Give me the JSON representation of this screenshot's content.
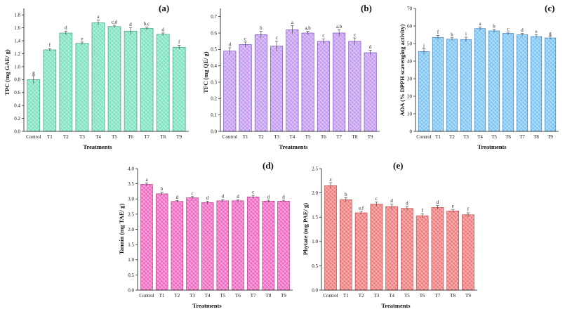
{
  "chart_data": [
    {
      "type": "bar",
      "panel_label": "(a)",
      "title": "",
      "xlabel": "Treatments",
      "ylabel": "TPC (mg GAE/ g)",
      "categories": [
        "Control",
        "T1",
        "T2",
        "T3",
        "T4",
        "T5",
        "T6",
        "T7",
        "T8",
        "T9"
      ],
      "values": [
        0.8,
        1.26,
        1.52,
        1.36,
        1.68,
        1.62,
        1.55,
        1.59,
        1.5,
        1.3
      ],
      "errors": [
        0.06,
        0.02,
        0.03,
        0.02,
        0.04,
        0.02,
        0.05,
        0.02,
        0.02,
        0.03
      ],
      "significance": [
        "g",
        "f",
        "d",
        "e",
        "a",
        "c,d",
        "d",
        "b,c",
        "d",
        "f"
      ],
      "ylim": [
        0,
        1.9
      ],
      "yticks": [
        0.0,
        0.2,
        0.4,
        0.6,
        0.8,
        1.0,
        1.2,
        1.4,
        1.6,
        1.8
      ],
      "ytick_labels": [
        "0.0",
        "0.2",
        "0.4",
        "0.6",
        "0.8",
        "1.0",
        "1.2",
        "1.4",
        "1.6",
        "1.8"
      ],
      "color": "#7fe3c3",
      "edge": "#2f8f6f"
    },
    {
      "type": "bar",
      "panel_label": "(b)",
      "title": "",
      "xlabel": "Treatments",
      "ylabel": "TFC (mg QE/ g)",
      "categories": [
        "Control",
        "T1",
        "T2",
        "T3",
        "T4",
        "T5",
        "T6",
        "T7",
        "T8",
        "T9"
      ],
      "values": [
        0.49,
        0.53,
        0.59,
        0.52,
        0.62,
        0.6,
        0.55,
        0.6,
        0.55,
        0.48
      ],
      "errors": [
        0.02,
        0.015,
        0.02,
        0.03,
        0.025,
        0.01,
        0.015,
        0.02,
        0.02,
        0.015
      ],
      "significance": [
        "d",
        "c",
        "b",
        "c",
        "a",
        "a,b",
        "c",
        "a,b",
        "c",
        "d"
      ],
      "ylim": [
        0,
        0.75
      ],
      "yticks": [
        0.0,
        0.1,
        0.2,
        0.3,
        0.4,
        0.5,
        0.6,
        0.7
      ],
      "ytick_labels": [
        "0.0",
        "0.1",
        "0.2",
        "0.3",
        "0.4",
        "0.5",
        "0.6",
        "0.7"
      ],
      "color": "#c49df0",
      "edge": "#6e3fb5"
    },
    {
      "type": "bar",
      "panel_label": "(c)",
      "title": "",
      "xlabel": "Treatments",
      "ylabel": "AOA (% DPPH scavenging activity)",
      "categories": [
        "Control",
        "T1",
        "T2",
        "T3",
        "T4",
        "T5",
        "T6",
        "T7",
        "T8",
        "T9"
      ],
      "values": [
        45.5,
        53.5,
        52.5,
        52.3,
        58.5,
        57.2,
        55.8,
        55.0,
        54.0,
        53.2
      ],
      "errors": [
        1.5,
        1.2,
        0.8,
        1.3,
        1.0,
        0.8,
        0.7,
        0.8,
        1.0,
        0.9
      ],
      "significance": [
        "j",
        "f",
        "h",
        "i",
        "a",
        "b",
        "c",
        "d",
        "e",
        "g"
      ],
      "ylim": [
        0,
        70
      ],
      "yticks": [
        0,
        10,
        20,
        30,
        40,
        50,
        60,
        70
      ],
      "ytick_labels": [
        "0",
        "10",
        "20",
        "30",
        "40",
        "50",
        "60",
        "70"
      ],
      "color": "#7fc6f3",
      "edge": "#2f78b8"
    },
    {
      "type": "bar",
      "panel_label": "(d)",
      "title": "",
      "xlabel": "Treatments",
      "ylabel": "Tannin (mg TAE/ g)",
      "categories": [
        "Control",
        "T1",
        "T2",
        "T3",
        "T4",
        "T5",
        "T6",
        "T7",
        "T8",
        "T9"
      ],
      "values": [
        3.48,
        3.17,
        2.92,
        3.04,
        2.88,
        2.94,
        2.94,
        3.07,
        2.93,
        2.93
      ],
      "errors": [
        0.05,
        0.05,
        0.03,
        0.04,
        0.05,
        0.04,
        0.03,
        0.05,
        0.03,
        0.03
      ],
      "significance": [
        "a",
        "b",
        "d",
        "c",
        "d",
        "d",
        "d",
        "c",
        "d",
        "d"
      ],
      "ylim": [
        0,
        4.0
      ],
      "yticks": [
        0.0,
        0.5,
        1.0,
        1.5,
        2.0,
        2.5,
        3.0,
        3.5,
        4.0
      ],
      "ytick_labels": [
        "0.0",
        "0.5",
        "1.0",
        "1.5",
        "2.0",
        "2.5",
        "3.0",
        "3.5",
        "4.0"
      ],
      "color": "#f06cc2",
      "edge": "#a82f82"
    },
    {
      "type": "bar",
      "panel_label": "(e)",
      "title": "",
      "xlabel": "Treatments",
      "ylabel": "Phytate (mg PAE/ g)",
      "categories": [
        "Control",
        "T1",
        "T2",
        "T3",
        "T4",
        "T5",
        "T6",
        "T7",
        "T8",
        "T9"
      ],
      "values": [
        2.15,
        1.86,
        1.59,
        1.77,
        1.72,
        1.68,
        1.53,
        1.7,
        1.63,
        1.55
      ],
      "errors": [
        0.06,
        0.04,
        0.03,
        0.04,
        0.05,
        0.04,
        0.04,
        0.04,
        0.03,
        0.04
      ],
      "significance": [
        "a",
        "b",
        "e,f",
        "c",
        "d",
        "d",
        "f",
        "d",
        "e",
        "f"
      ],
      "ylim": [
        0,
        2.5
      ],
      "yticks": [
        0.0,
        0.5,
        1.0,
        1.5,
        2.0,
        2.5
      ],
      "ytick_labels": [
        "0.0",
        "0.5",
        "1.0",
        "1.5",
        "2.0",
        "2.5"
      ],
      "color": "#f07e7e",
      "edge": "#b83c3c"
    }
  ]
}
